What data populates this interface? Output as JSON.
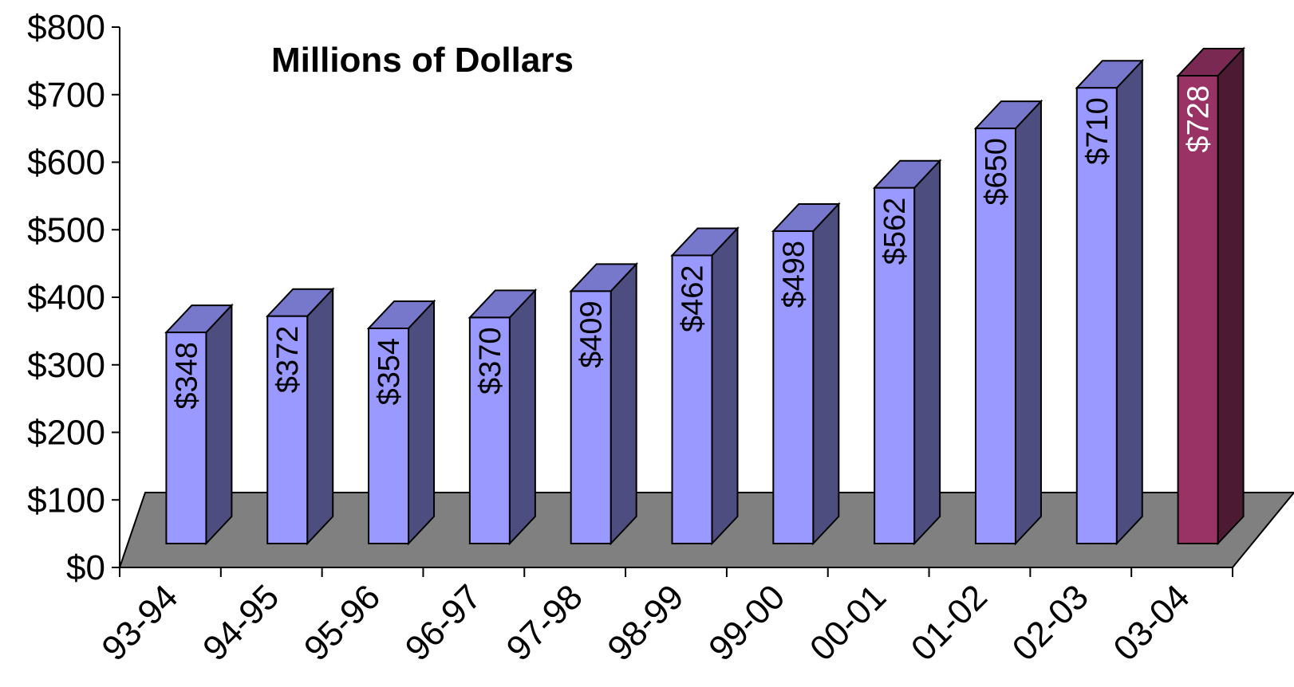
{
  "chart_data": {
    "type": "bar",
    "title": "Millions of Dollars",
    "categories": [
      "93-94",
      "94-95",
      "95-96",
      "96-97",
      "97-98",
      "98-99",
      "99-00",
      "00-01",
      "01-02",
      "02-03",
      "03-04"
    ],
    "values": [
      348,
      372,
      354,
      370,
      409,
      462,
      498,
      562,
      650,
      710,
      728
    ],
    "data_labels": [
      "$348",
      "$372",
      "$354",
      "$370",
      "$409",
      "$462",
      "$498",
      "$562",
      "$650",
      "$710",
      "$728"
    ],
    "y_ticks": [
      "$0",
      "$100",
      "$200",
      "$300",
      "$400",
      "$500",
      "$600",
      "$700",
      "$800"
    ],
    "ylim": [
      0,
      800
    ],
    "xlabel": "",
    "ylabel": "",
    "grid": false,
    "colors": {
      "bar_front": "#9999ff",
      "bar_top": "#7777cc",
      "bar_side": "#4d4d80",
      "highlight_front": "#993366",
      "highlight_top": "#7a2952",
      "highlight_side": "#4d1a33",
      "floor": "#808080",
      "highlight_label": "#ffffff",
      "label": "#000000"
    },
    "highlight_index": 10
  }
}
